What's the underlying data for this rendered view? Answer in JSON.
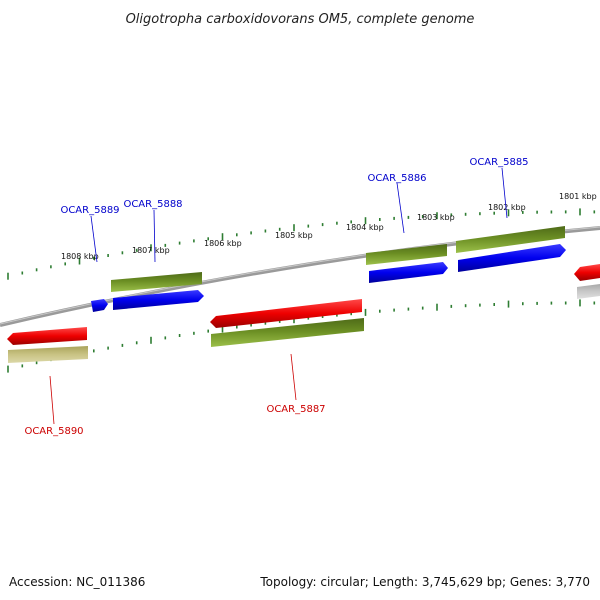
{
  "title": "Oligotropha carboxidovorans OM5, complete genome",
  "scale_labels": [
    "1808 kbp",
    "1807 kbp",
    "1806 kbp",
    "1805 kbp",
    "1804 kbp",
    "1803 kbp",
    "1802 kbp",
    "1801 kbp"
  ],
  "gene_labels": [
    {
      "id": "OCAR_5889",
      "strand": "forward"
    },
    {
      "id": "OCAR_5888",
      "strand": "forward"
    },
    {
      "id": "OCAR_5886",
      "strand": "forward"
    },
    {
      "id": "OCAR_5885",
      "strand": "forward"
    },
    {
      "id": "OCAR_5887",
      "strand": "reverse"
    },
    {
      "id": "OCAR_5890",
      "strand": "reverse"
    }
  ],
  "colors": {
    "forward_gene": "#0000ee",
    "reverse_gene": "#ee0000",
    "forward_label": "#0000cc",
    "reverse_label": "#cc0000",
    "orf": "#6b8e23",
    "orf_pale": "#bdb76b",
    "ticks": "#2e7d32",
    "backbone": "#808080"
  },
  "footer": {
    "accession": "Accession: NC_011386",
    "summary": "Topology: circular; Length: 3,745,629 bp; Genes: 3,770"
  }
}
